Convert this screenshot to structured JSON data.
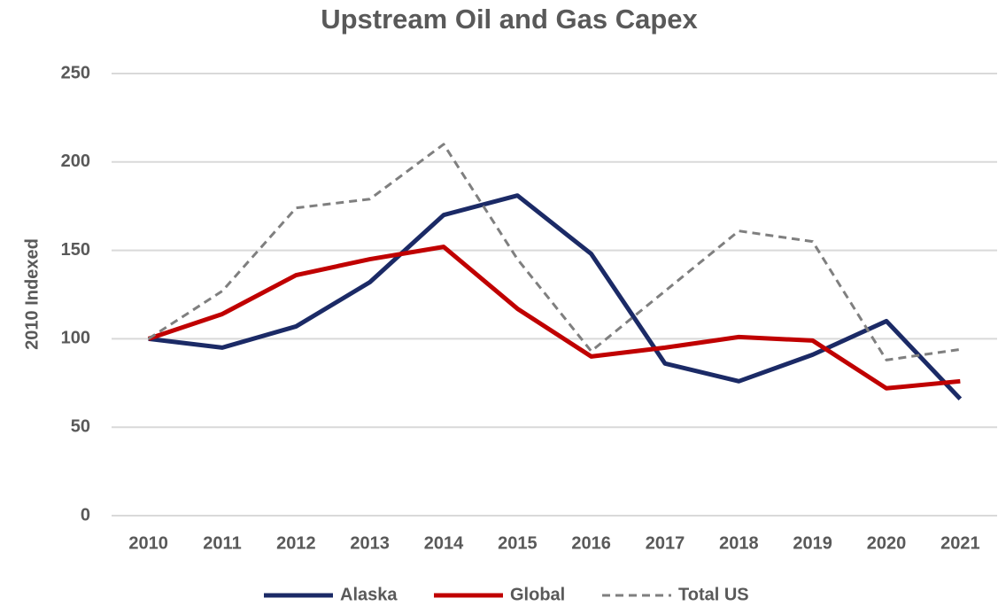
{
  "chart_data": {
    "type": "line",
    "title": "Upstream Oil and Gas Capex",
    "y_label": "2010 Indexed",
    "categories": [
      "2010",
      "2011",
      "2012",
      "2013",
      "2014",
      "2015",
      "2016",
      "2017",
      "2018",
      "2019",
      "2020",
      "2021"
    ],
    "series": [
      {
        "name": "Alaska",
        "color": "#1b2a66",
        "dashed": false,
        "values": [
          100,
          95,
          107,
          132,
          170,
          181,
          148,
          86,
          76,
          91,
          110,
          66
        ]
      },
      {
        "name": "Global",
        "color": "#c00000",
        "dashed": false,
        "values": [
          100,
          114,
          136,
          145,
          152,
          117,
          90,
          95,
          101,
          99,
          72,
          76
        ]
      },
      {
        "name": "Total US",
        "color": "#7f7f7f",
        "dashed": true,
        "values": [
          100,
          127,
          174,
          179,
          210,
          145,
          93,
          127,
          161,
          155,
          88,
          94
        ]
      }
    ],
    "ylim": [
      0,
      250
    ],
    "yticks": [
      0,
      50,
      100,
      150,
      200,
      250
    ],
    "grid": true,
    "legend": "bottom"
  }
}
